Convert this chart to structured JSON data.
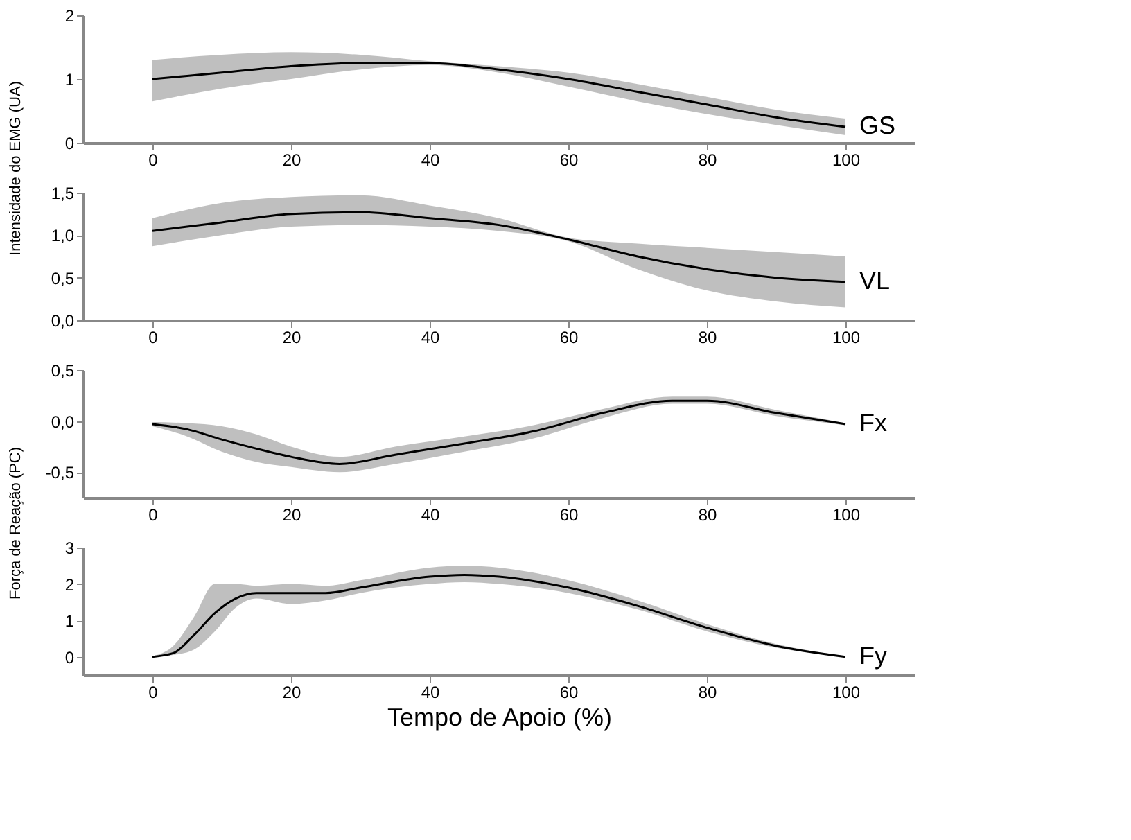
{
  "chart_data": [
    {
      "type": "line",
      "ylabel": "Intensidade do EMG (UA)",
      "xlim": [
        -10,
        110
      ],
      "xticks": [
        0,
        20,
        40,
        60,
        80,
        100
      ],
      "ylim": [
        0,
        2
      ],
      "yticks": [
        0,
        1,
        2
      ],
      "grid": false,
      "marker": "none",
      "line_style": "solid",
      "x": [
        0,
        10,
        20,
        30,
        40,
        50,
        60,
        70,
        80,
        90,
        100
      ],
      "series": [
        {
          "name": "GS",
          "color": "#000000",
          "values": [
            1.0,
            1.1,
            1.2,
            1.25,
            1.25,
            1.15,
            1.0,
            0.8,
            0.6,
            0.4,
            0.25
          ],
          "lower": [
            0.65,
            0.85,
            1.0,
            1.15,
            1.22,
            1.1,
            0.88,
            0.65,
            0.45,
            0.28,
            0.12
          ],
          "upper": [
            1.3,
            1.38,
            1.42,
            1.38,
            1.28,
            1.2,
            1.1,
            0.92,
            0.72,
            0.52,
            0.38
          ]
        }
      ]
    },
    {
      "type": "line",
      "xlim": [
        -10,
        110
      ],
      "xticks": [
        0,
        20,
        40,
        60,
        80,
        100
      ],
      "ylim": [
        0,
        1.5
      ],
      "yticks": [
        {
          "value": 0,
          "label": "0,0"
        },
        {
          "value": 0.5,
          "label": "0,5"
        },
        {
          "value": 1,
          "label": "1,0"
        },
        {
          "value": 1.5,
          "label": "1,5"
        }
      ],
      "grid": false,
      "marker": "none",
      "line_style": "solid",
      "x": [
        0,
        10,
        20,
        30,
        40,
        50,
        60,
        70,
        80,
        90,
        100
      ],
      "series": [
        {
          "name": "VL",
          "color": "#000000",
          "values": [
            1.05,
            1.15,
            1.25,
            1.27,
            1.2,
            1.12,
            0.95,
            0.75,
            0.6,
            0.5,
            0.45
          ],
          "lower": [
            0.87,
            1.0,
            1.1,
            1.12,
            1.1,
            1.05,
            0.93,
            0.6,
            0.35,
            0.22,
            0.15
          ],
          "upper": [
            1.2,
            1.38,
            1.45,
            1.47,
            1.35,
            1.2,
            0.97,
            0.9,
            0.85,
            0.8,
            0.75
          ]
        }
      ]
    },
    {
      "type": "line",
      "ylabel": "Força de Reação (PC)",
      "xlim": [
        -10,
        110
      ],
      "xticks": [
        0,
        20,
        40,
        60,
        80,
        100
      ],
      "ylim": [
        -0.75,
        0.5
      ],
      "yticks": [
        {
          "value": -0.5,
          "label": "-0,5"
        },
        {
          "value": 0,
          "label": "0,0"
        },
        {
          "value": 0.5,
          "label": "0,5"
        }
      ],
      "grid": false,
      "marker": "none",
      "line_style": "solid",
      "x": [
        0,
        5,
        10,
        15,
        20,
        27,
        35,
        45,
        55,
        65,
        75,
        80,
        90,
        100
      ],
      "series": [
        {
          "name": "Fx",
          "color": "#000000",
          "values": [
            -0.03,
            -0.08,
            -0.18,
            -0.27,
            -0.35,
            -0.42,
            -0.33,
            -0.22,
            -0.1,
            0.08,
            0.2,
            0.2,
            0.08,
            -0.03
          ],
          "lower": [
            -0.05,
            -0.15,
            -0.3,
            -0.4,
            -0.45,
            -0.5,
            -0.42,
            -0.3,
            -0.17,
            0.03,
            0.17,
            0.17,
            0.05,
            -0.04
          ],
          "upper": [
            -0.01,
            -0.02,
            -0.05,
            -0.13,
            -0.25,
            -0.35,
            -0.25,
            -0.15,
            -0.04,
            0.12,
            0.24,
            0.24,
            0.11,
            -0.02
          ]
        }
      ]
    },
    {
      "type": "line",
      "xlabel": "Tempo de Apoio (%)",
      "xlim": [
        -10,
        110
      ],
      "xticks": [
        0,
        20,
        40,
        60,
        80,
        100
      ],
      "ylim": [
        -0.5,
        3
      ],
      "yticks": [
        0,
        1,
        2,
        3
      ],
      "grid": false,
      "marker": "none",
      "line_style": "solid",
      "x": [
        0,
        3,
        6,
        9,
        12,
        15,
        20,
        25,
        30,
        40,
        45,
        50,
        60,
        70,
        80,
        90,
        100
      ],
      "series": [
        {
          "name": "Fy",
          "color": "#000000",
          "values": [
            0.0,
            0.1,
            0.6,
            1.2,
            1.6,
            1.75,
            1.75,
            1.75,
            1.9,
            2.2,
            2.25,
            2.2,
            1.9,
            1.4,
            0.8,
            0.3,
            0.0
          ],
          "lower": [
            0.0,
            0.05,
            0.2,
            0.7,
            1.35,
            1.6,
            1.45,
            1.55,
            1.75,
            2.0,
            2.05,
            2.0,
            1.75,
            1.3,
            0.7,
            0.25,
            0.0
          ],
          "upper": [
            0.02,
            0.3,
            1.1,
            2.0,
            2.0,
            1.95,
            2.0,
            1.95,
            2.1,
            2.45,
            2.5,
            2.45,
            2.1,
            1.55,
            0.9,
            0.35,
            0.02
          ]
        }
      ]
    }
  ]
}
